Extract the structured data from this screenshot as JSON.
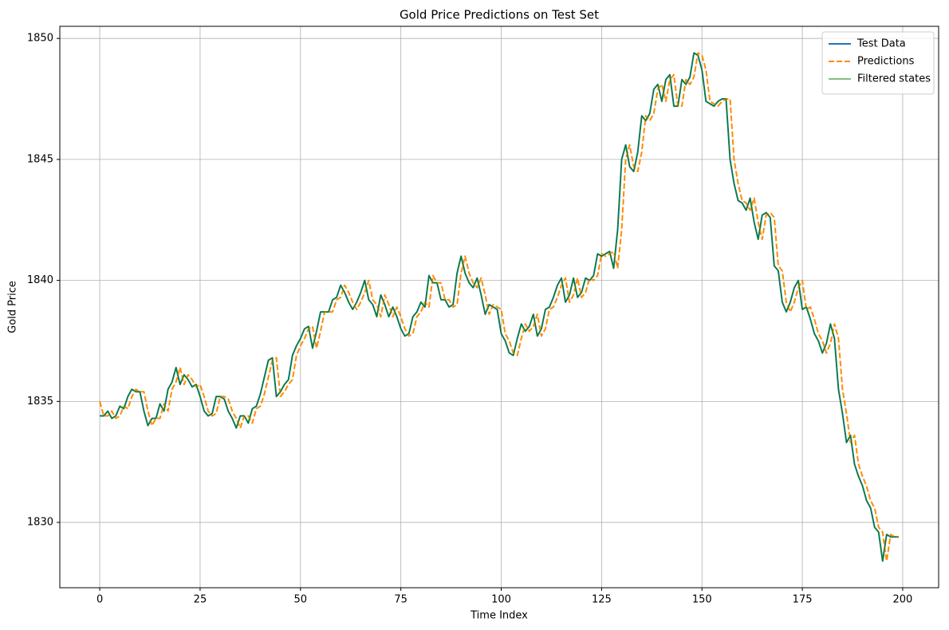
{
  "chart_data": {
    "type": "line",
    "title": "Gold Price Predictions on Test Set",
    "xlabel": "Time Index",
    "ylabel": "Gold Price",
    "x": [
      0,
      1,
      2,
      3,
      4,
      5,
      6,
      7,
      8,
      9,
      10,
      11,
      12,
      13,
      14,
      15,
      16,
      17,
      18,
      19,
      20,
      21,
      22,
      23,
      24,
      25,
      26,
      27,
      28,
      29,
      30,
      31,
      32,
      33,
      34,
      35,
      36,
      37,
      38,
      39,
      40,
      41,
      42,
      43,
      44,
      45,
      46,
      47,
      48,
      49,
      50,
      51,
      52,
      53,
      54,
      55,
      56,
      57,
      58,
      59,
      60,
      61,
      62,
      63,
      64,
      65,
      66,
      67,
      68,
      69,
      70,
      71,
      72,
      73,
      74,
      75,
      76,
      77,
      78,
      79,
      80,
      81,
      82,
      83,
      84,
      85,
      86,
      87,
      88,
      89,
      90,
      91,
      92,
      93,
      94,
      95,
      96,
      97,
      98,
      99,
      100,
      101,
      102,
      103,
      104,
      105,
      106,
      107,
      108,
      109,
      110,
      111,
      112,
      113,
      114,
      115,
      116,
      117,
      118,
      119,
      120,
      121,
      122,
      123,
      124,
      125,
      126,
      127,
      128,
      129,
      130,
      131,
      132,
      133,
      134,
      135,
      136,
      137,
      138,
      139,
      140,
      141,
      142,
      143,
      144,
      145,
      146,
      147,
      148,
      149,
      150,
      151,
      152,
      153,
      154,
      155,
      156,
      157,
      158,
      159,
      160,
      161,
      162,
      163,
      164,
      165,
      166,
      167,
      168,
      169,
      170,
      171,
      172,
      173,
      174,
      175,
      176,
      177,
      178,
      179,
      180,
      181,
      182,
      183,
      184,
      185,
      186,
      187,
      188,
      189,
      190,
      191,
      192,
      193,
      194,
      195,
      196,
      197,
      198,
      199
    ],
    "series": [
      {
        "name": "Test Data",
        "color": "#1f77b4",
        "width": 2,
        "dashed": false,
        "values": [
          1834.4,
          1834.4,
          1834.6,
          1834.3,
          1834.4,
          1834.8,
          1834.7,
          1835.2,
          1835.5,
          1835.4,
          1835.4,
          1834.6,
          1834.0,
          1834.3,
          1834.3,
          1834.9,
          1834.6,
          1835.5,
          1835.8,
          1836.4,
          1835.7,
          1836.1,
          1835.9,
          1835.6,
          1835.7,
          1835.2,
          1834.6,
          1834.4,
          1834.5,
          1835.2,
          1835.2,
          1835.1,
          1834.6,
          1834.3,
          1833.9,
          1834.4,
          1834.4,
          1834.1,
          1834.7,
          1834.8,
          1835.3,
          1836.0,
          1836.7,
          1836.8,
          1835.2,
          1835.4,
          1835.7,
          1835.9,
          1836.9,
          1837.3,
          1837.6,
          1838.0,
          1838.1,
          1837.2,
          1837.9,
          1838.7,
          1838.7,
          1838.7,
          1839.2,
          1839.3,
          1839.8,
          1839.5,
          1839.1,
          1838.8,
          1839.1,
          1839.5,
          1840.0,
          1839.2,
          1839.0,
          1838.5,
          1839.4,
          1839.0,
          1838.5,
          1838.9,
          1838.5,
          1838.0,
          1837.7,
          1837.8,
          1838.5,
          1838.7,
          1839.1,
          1838.9,
          1840.2,
          1839.9,
          1839.9,
          1839.2,
          1839.2,
          1838.9,
          1839.0,
          1840.3,
          1841.0,
          1840.3,
          1839.9,
          1839.7,
          1840.1,
          1839.4,
          1838.6,
          1839.0,
          1838.9,
          1838.8,
          1837.8,
          1837.5,
          1837.0,
          1836.9,
          1837.6,
          1838.2,
          1837.9,
          1838.1,
          1838.6,
          1837.7,
          1838.0,
          1838.8,
          1838.9,
          1839.3,
          1839.8,
          1840.1,
          1839.1,
          1839.4,
          1840.1,
          1839.3,
          1839.5,
          1840.1,
          1840.0,
          1840.2,
          1841.1,
          1841.0,
          1841.1,
          1841.2,
          1840.5,
          1842.1,
          1845.0,
          1845.6,
          1844.7,
          1844.5,
          1845.3,
          1846.8,
          1846.6,
          1846.9,
          1847.9,
          1848.1,
          1847.4,
          1848.3,
          1848.5,
          1847.2,
          1847.2,
          1848.3,
          1848.1,
          1848.4,
          1849.4,
          1849.3,
          1848.7,
          1847.4,
          1847.3,
          1847.2,
          1847.4,
          1847.5,
          1847.5,
          1845.0,
          1844.0,
          1843.3,
          1843.2,
          1842.9,
          1843.4,
          1842.4,
          1841.7,
          1842.7,
          1842.8,
          1842.6,
          1840.6,
          1840.4,
          1839.1,
          1838.7,
          1839.1,
          1839.7,
          1840.0,
          1838.8,
          1838.9,
          1838.4,
          1837.8,
          1837.5,
          1837.0,
          1837.4,
          1838.2,
          1837.6,
          1835.5,
          1834.5,
          1833.3,
          1833.6,
          1832.4,
          1831.9,
          1831.5,
          1830.9,
          1830.6,
          1829.8,
          1829.6,
          1828.4,
          1829.5,
          1829.4,
          1829.4,
          1829.4
        ]
      },
      {
        "name": "Predictions",
        "color": "#ff8c00",
        "width": 2,
        "dashed": true,
        "values": [
          1835.0,
          1834.4,
          1834.4,
          1834.6,
          1834.3,
          1834.4,
          1834.8,
          1834.7,
          1835.2,
          1835.5,
          1835.4,
          1835.4,
          1834.6,
          1834.0,
          1834.3,
          1834.3,
          1834.9,
          1834.6,
          1835.5,
          1835.8,
          1836.4,
          1835.7,
          1836.1,
          1835.9,
          1835.6,
          1835.7,
          1835.2,
          1834.6,
          1834.4,
          1834.5,
          1835.2,
          1835.2,
          1835.1,
          1834.6,
          1834.3,
          1833.9,
          1834.4,
          1834.4,
          1834.1,
          1834.7,
          1834.8,
          1835.3,
          1836.0,
          1836.7,
          1836.8,
          1835.2,
          1835.4,
          1835.7,
          1835.9,
          1836.9,
          1837.3,
          1837.6,
          1838.0,
          1838.1,
          1837.2,
          1837.9,
          1838.7,
          1838.7,
          1838.7,
          1839.2,
          1839.3,
          1839.8,
          1839.5,
          1839.1,
          1838.8,
          1839.1,
          1839.5,
          1840.0,
          1839.2,
          1839.0,
          1838.5,
          1839.4,
          1839.0,
          1838.5,
          1838.9,
          1838.5,
          1838.0,
          1837.7,
          1837.8,
          1838.5,
          1838.7,
          1839.1,
          1838.9,
          1840.2,
          1839.9,
          1839.9,
          1839.2,
          1839.2,
          1838.9,
          1839.0,
          1840.3,
          1841.0,
          1840.3,
          1839.9,
          1839.7,
          1840.1,
          1839.4,
          1838.6,
          1839.0,
          1838.9,
          1838.8,
          1837.8,
          1837.5,
          1837.0,
          1836.9,
          1837.6,
          1838.2,
          1837.9,
          1838.1,
          1838.6,
          1837.7,
          1838.0,
          1838.8,
          1838.9,
          1839.3,
          1839.8,
          1840.1,
          1839.1,
          1839.4,
          1840.1,
          1839.3,
          1839.5,
          1840.1,
          1840.0,
          1840.2,
          1841.1,
          1841.0,
          1841.1,
          1841.2,
          1840.5,
          1842.1,
          1845.0,
          1845.6,
          1844.7,
          1844.5,
          1845.3,
          1846.8,
          1846.6,
          1846.9,
          1847.9,
          1848.1,
          1847.4,
          1848.3,
          1848.5,
          1847.2,
          1847.2,
          1848.3,
          1848.1,
          1848.4,
          1849.4,
          1849.3,
          1848.7,
          1847.4,
          1847.3,
          1847.2,
          1847.4,
          1847.5,
          1847.5,
          1845.0,
          1844.0,
          1843.3,
          1843.2,
          1842.9,
          1843.4,
          1842.4,
          1841.7,
          1842.7,
          1842.8,
          1842.6,
          1840.6,
          1840.4,
          1839.1,
          1838.7,
          1839.1,
          1839.7,
          1840.0,
          1838.8,
          1838.9,
          1838.4,
          1837.8,
          1837.5,
          1837.0,
          1837.4,
          1838.2,
          1837.6,
          1835.5,
          1834.5,
          1833.3,
          1833.6,
          1832.4,
          1831.9,
          1831.5,
          1830.9,
          1830.6,
          1829.8,
          1829.6,
          1828.4,
          1829.5,
          1829.4,
          1829.4
        ]
      },
      {
        "name": "Filtered states",
        "color": "#008000",
        "width": 1,
        "dashed": false,
        "values": [
          1834.4,
          1834.4,
          1834.6,
          1834.3,
          1834.4,
          1834.8,
          1834.7,
          1835.2,
          1835.5,
          1835.4,
          1835.4,
          1834.6,
          1834.0,
          1834.3,
          1834.3,
          1834.9,
          1834.6,
          1835.5,
          1835.8,
          1836.4,
          1835.7,
          1836.1,
          1835.9,
          1835.6,
          1835.7,
          1835.2,
          1834.6,
          1834.4,
          1834.5,
          1835.2,
          1835.2,
          1835.1,
          1834.6,
          1834.3,
          1833.9,
          1834.4,
          1834.4,
          1834.1,
          1834.7,
          1834.8,
          1835.3,
          1836.0,
          1836.7,
          1836.8,
          1835.2,
          1835.4,
          1835.7,
          1835.9,
          1836.9,
          1837.3,
          1837.6,
          1838.0,
          1838.1,
          1837.2,
          1837.9,
          1838.7,
          1838.7,
          1838.7,
          1839.2,
          1839.3,
          1839.8,
          1839.5,
          1839.1,
          1838.8,
          1839.1,
          1839.5,
          1840.0,
          1839.2,
          1839.0,
          1838.5,
          1839.4,
          1839.0,
          1838.5,
          1838.9,
          1838.5,
          1838.0,
          1837.7,
          1837.8,
          1838.5,
          1838.7,
          1839.1,
          1838.9,
          1840.2,
          1839.9,
          1839.9,
          1839.2,
          1839.2,
          1838.9,
          1839.0,
          1840.3,
          1841.0,
          1840.3,
          1839.9,
          1839.7,
          1840.1,
          1839.4,
          1838.6,
          1839.0,
          1838.9,
          1838.8,
          1837.8,
          1837.5,
          1837.0,
          1836.9,
          1837.6,
          1838.2,
          1837.9,
          1838.1,
          1838.6,
          1837.7,
          1838.0,
          1838.8,
          1838.9,
          1839.3,
          1839.8,
          1840.1,
          1839.1,
          1839.4,
          1840.1,
          1839.3,
          1839.5,
          1840.1,
          1840.0,
          1840.2,
          1841.1,
          1841.0,
          1841.1,
          1841.2,
          1840.5,
          1842.1,
          1845.0,
          1845.6,
          1844.7,
          1844.5,
          1845.3,
          1846.8,
          1846.6,
          1846.9,
          1847.9,
          1848.1,
          1847.4,
          1848.3,
          1848.5,
          1847.2,
          1847.2,
          1848.3,
          1848.1,
          1848.4,
          1849.4,
          1849.3,
          1848.7,
          1847.4,
          1847.3,
          1847.2,
          1847.4,
          1847.5,
          1847.5,
          1845.0,
          1844.0,
          1843.3,
          1843.2,
          1842.9,
          1843.4,
          1842.4,
          1841.7,
          1842.7,
          1842.8,
          1842.6,
          1840.6,
          1840.4,
          1839.1,
          1838.7,
          1839.1,
          1839.7,
          1840.0,
          1838.8,
          1838.9,
          1838.4,
          1837.8,
          1837.5,
          1837.0,
          1837.4,
          1838.2,
          1837.6,
          1835.5,
          1834.5,
          1833.3,
          1833.6,
          1832.4,
          1831.9,
          1831.5,
          1830.9,
          1830.6,
          1829.8,
          1829.6,
          1828.4,
          1829.5,
          1829.4,
          1829.4,
          1829.4
        ]
      }
    ],
    "xlim": [
      -9.95,
      208.95
    ],
    "ylim": [
      1827.3,
      1850.5
    ],
    "xticks": [
      0,
      25,
      50,
      75,
      100,
      125,
      150,
      175,
      200
    ],
    "yticks": [
      1830,
      1835,
      1840,
      1845,
      1850
    ],
    "grid": true,
    "legend": "upper right"
  }
}
